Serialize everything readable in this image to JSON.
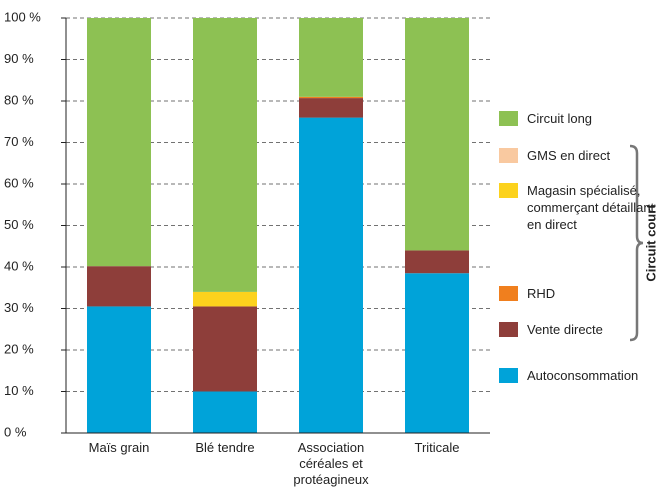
{
  "chart_data": {
    "type": "stacked_bar",
    "categories": [
      "Maïs grain",
      "Blé tendre",
      "Association céréales et protéagineux",
      "Triticale"
    ],
    "series": [
      {
        "name": "Autoconsommation",
        "color": "#00a3d9",
        "values": [
          30.5,
          10,
          76,
          38.5
        ]
      },
      {
        "name": "Vente directe",
        "color": "#8e3e3a",
        "values": [
          9.7,
          20.5,
          4.7,
          5.5
        ]
      },
      {
        "name": "RHD",
        "color": "#f07f1e",
        "values": [
          0,
          0,
          0.3,
          0
        ]
      },
      {
        "name": "Magasin spécialisé, commerçant détaillant en direct",
        "color": "#fcd21d",
        "values": [
          0,
          3.5,
          0,
          0
        ]
      },
      {
        "name": "GMS en direct",
        "color": "#f9c9a0",
        "values": [
          0,
          0,
          0,
          0
        ]
      },
      {
        "name": "Circuit long",
        "color": "#8dc153",
        "values": [
          59.8,
          66,
          19,
          56
        ]
      }
    ],
    "ylim": [
      0,
      100
    ],
    "yticks": [
      {
        "value": 0,
        "label": "0 %"
      },
      {
        "value": 10,
        "label": "10 %"
      },
      {
        "value": 20,
        "label": "20 %"
      },
      {
        "value": 30,
        "label": "30 %"
      },
      {
        "value": 40,
        "label": "40 %"
      },
      {
        "value": 50,
        "label": "50 %"
      },
      {
        "value": 60,
        "label": "60 %"
      },
      {
        "value": 70,
        "label": "70 %"
      },
      {
        "value": 80,
        "label": "80 %"
      },
      {
        "value": 90,
        "label": "90 %"
      },
      {
        "value": 100,
        "label": "100 %"
      }
    ],
    "grid": true,
    "legend": "right",
    "annotation": "Circuit court"
  }
}
